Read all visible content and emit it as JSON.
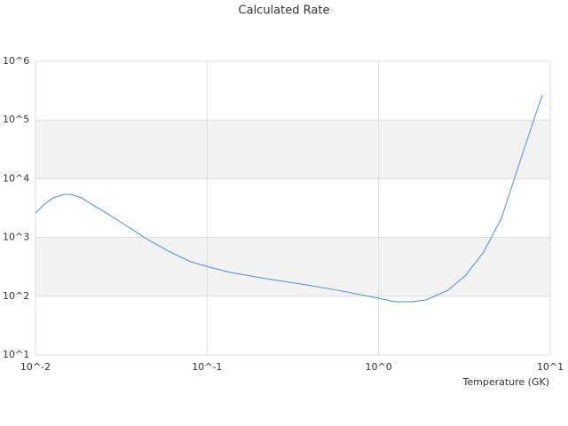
{
  "chart_data": {
    "type": "line",
    "title": "Calculated Rate",
    "x_label": "Temperature (GK)",
    "x": [
      0.01,
      0.01127,
      0.01268,
      0.01466,
      0.0161,
      0.0186,
      0.0204,
      0.0259,
      0.0349,
      0.0443,
      0.0597,
      0.0804,
      0.108,
      0.137,
      0.221,
      0.356,
      0.574,
      1,
      1.24,
      1.57,
      1.89,
      2.54,
      3.22,
      4.09,
      5.19,
      6.98,
      8.98
    ],
    "series": [
      {
        "color": "#4a90d9",
        "values": [
          2610,
          3700,
          4720,
          5420,
          5420,
          4720,
          3960,
          2610,
          1500,
          952,
          585,
          385,
          302,
          254,
          199,
          161,
          127,
          92.7,
          80.6,
          80.6,
          86.4,
          127,
          229,
          565,
          2120,
          29800,
          267000
        ]
      }
    ],
    "x_log": true,
    "y_log": true,
    "xlim": [
      0.01,
      10
    ],
    "ylim": [
      10,
      1000000
    ],
    "xticks": [
      {
        "value": 0.01,
        "label": "10^-2"
      },
      {
        "value": 0.1,
        "label": "10^-1"
      },
      {
        "value": 1,
        "label": "10^0"
      },
      {
        "value": 10,
        "label": "10^1"
      }
    ],
    "yticks": [
      {
        "value": 10,
        "label": "10^1"
      },
      {
        "value": 100,
        "label": "10^2"
      },
      {
        "value": 1000,
        "label": "10^3"
      },
      {
        "value": 10000,
        "label": "10^4"
      },
      {
        "value": 100000,
        "label": "10^5"
      },
      {
        "value": 1000000,
        "label": "10^6"
      }
    ],
    "grid": true,
    "alternate_bands": true,
    "band_color": "#f2f2f2"
  }
}
